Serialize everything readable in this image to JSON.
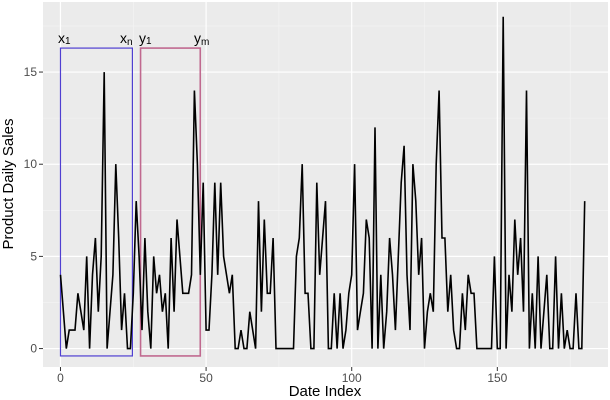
{
  "chart_data": {
    "type": "line",
    "title": "",
    "xlabel": "Date Index",
    "ylabel": "Product Daily Sales",
    "xlim": [
      -6,
      188
    ],
    "ylim": [
      -1,
      18.8
    ],
    "x_ticks": [
      0,
      50,
      100,
      150
    ],
    "y_ticks": [
      0,
      5,
      10,
      15
    ],
    "grid": true,
    "legend": null,
    "series": [
      {
        "name": "Product Daily Sales",
        "color": "#000000",
        "x_start": 0,
        "values": [
          4,
          2,
          0,
          1,
          1,
          1,
          3,
          2,
          1,
          5,
          0,
          4,
          6,
          2,
          5,
          15,
          0,
          2,
          4,
          10,
          6,
          1,
          3,
          0,
          0,
          3,
          8,
          5,
          1,
          6,
          2,
          0,
          5,
          3,
          4,
          2,
          3,
          0,
          6,
          2,
          7,
          5,
          3,
          3,
          3,
          4,
          14,
          10,
          4,
          9,
          1,
          1,
          4,
          9,
          4,
          9,
          5,
          4,
          3,
          4,
          0,
          0,
          1,
          0,
          0,
          2,
          1,
          0,
          8,
          2,
          7,
          3,
          3,
          6,
          0,
          0,
          0,
          0,
          0,
          0,
          0,
          5,
          6,
          10,
          3,
          3,
          0,
          0,
          9,
          4,
          6,
          8,
          0,
          0,
          3,
          0,
          3,
          0,
          1,
          3,
          4,
          10,
          1,
          2,
          3,
          7,
          6,
          0,
          12,
          0,
          4,
          0,
          2,
          6,
          4,
          1,
          5,
          9,
          11,
          4,
          1,
          10,
          8,
          4,
          6,
          0,
          2,
          3,
          2,
          10,
          14,
          6,
          6,
          2,
          4,
          1,
          0,
          0,
          3,
          1,
          4,
          3,
          3,
          0,
          0,
          0,
          0,
          0,
          0,
          5,
          0,
          0,
          18,
          0,
          4,
          2,
          7,
          4,
          6,
          2,
          14,
          0,
          3,
          0,
          5,
          0,
          2,
          4,
          0,
          0,
          5,
          0,
          3,
          0,
          1,
          0,
          0,
          3,
          0,
          0,
          8
        ]
      }
    ],
    "annotations": [
      {
        "type": "rect",
        "color": "#4f3fd1",
        "x_from": 0,
        "x_to": 24.7,
        "y_from": -0.4,
        "y_to": 16.3,
        "label_left": "x",
        "label_left_sub": "1",
        "label_right": "x",
        "label_right_sub": "n"
      },
      {
        "type": "rect",
        "color": "#c0698f",
        "x_from": 27.5,
        "x_to": 48,
        "y_from": -0.4,
        "y_to": 16.3,
        "label_left": "y",
        "label_left_sub": "1",
        "label_right": "y",
        "label_right_sub": "m"
      }
    ]
  },
  "axes": {
    "x_title": "Date Index",
    "y_title": "Product Daily Sales",
    "x_tick_labels": [
      "0",
      "50",
      "100",
      "150"
    ],
    "y_tick_labels": [
      "0",
      "5",
      "10",
      "15"
    ]
  },
  "annotations": {
    "window1": {
      "left": "x",
      "left_sub": "1",
      "right": "x",
      "right_sub": "n"
    },
    "window2": {
      "left": "y",
      "left_sub": "1",
      "right": "y",
      "right_sub": "m"
    }
  },
  "colors": {
    "panel_bg": "#ebebeb",
    "grid_major": "#ffffff",
    "line": "#000000",
    "window1": "#4f3fd1",
    "window2": "#c0698f"
  }
}
